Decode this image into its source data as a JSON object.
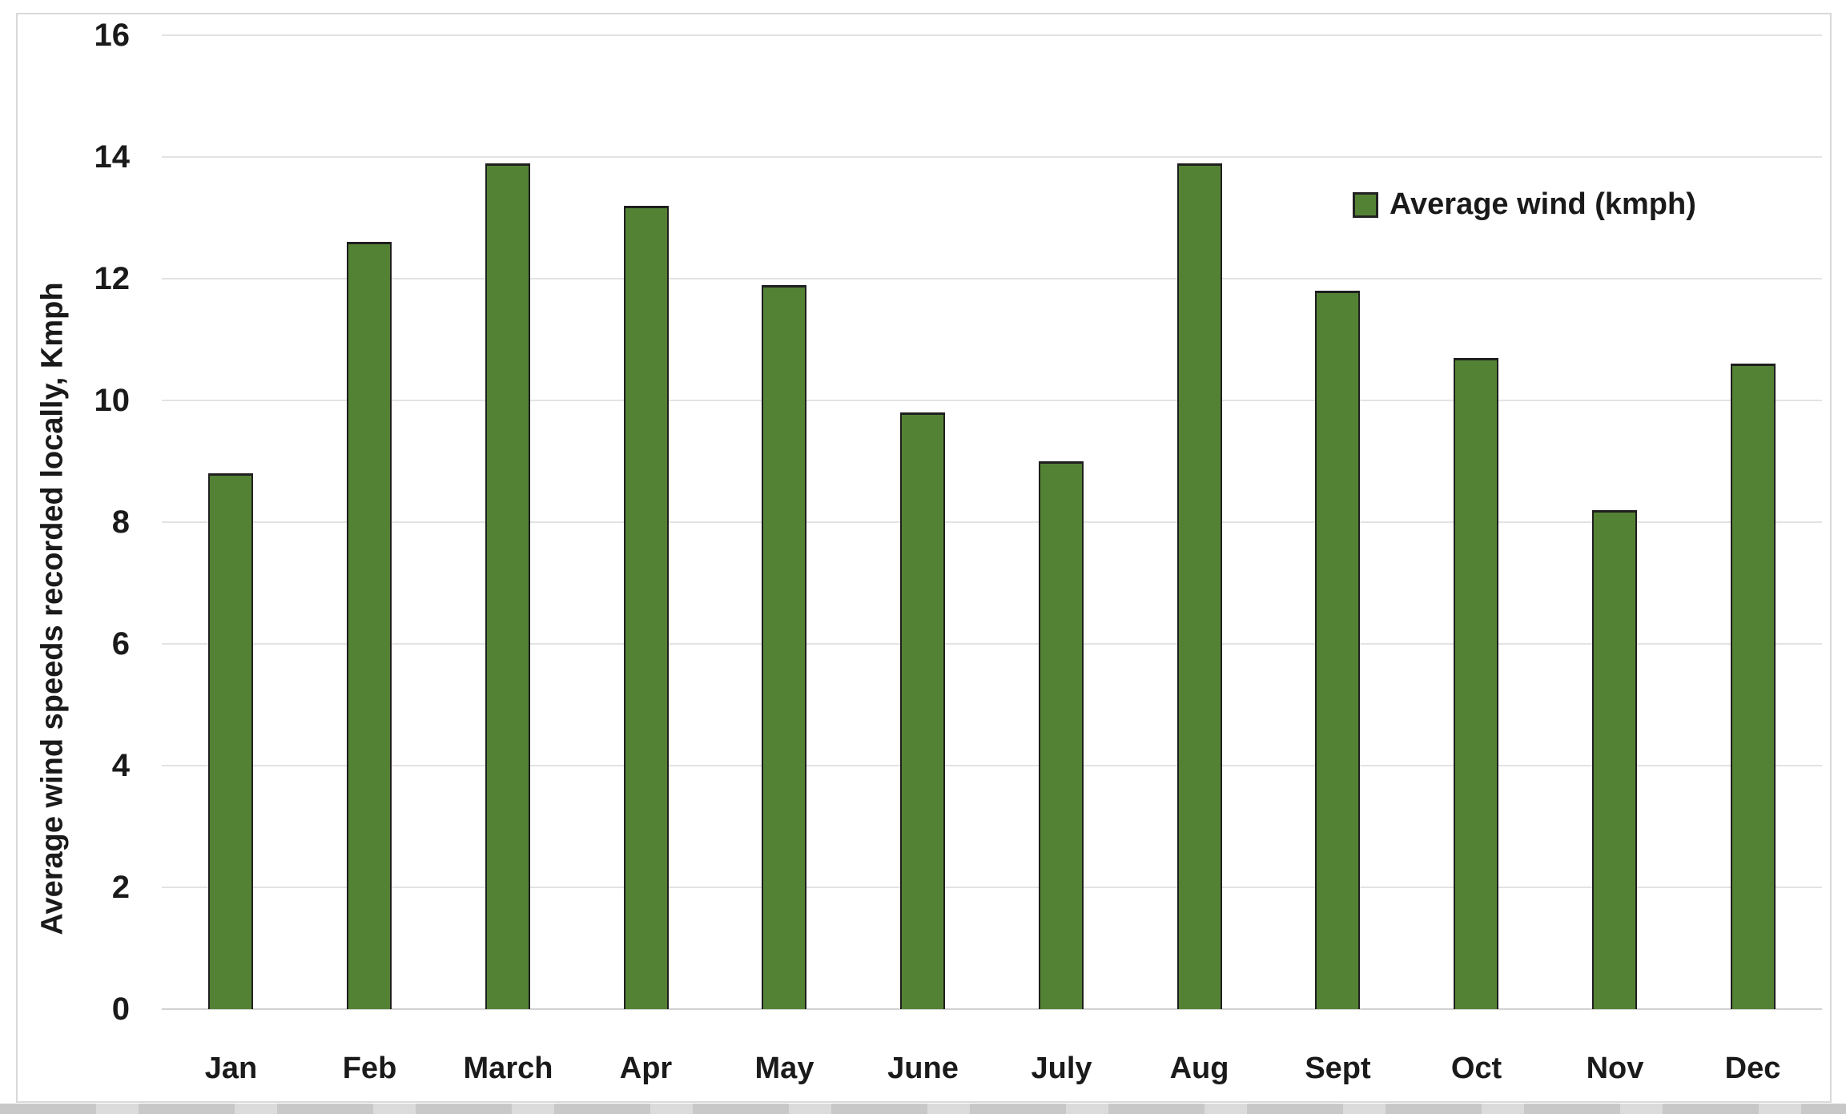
{
  "chart_data": {
    "type": "bar",
    "categories": [
      "Jan",
      "Feb",
      "March",
      "Apr",
      "May",
      "June",
      "July",
      "Aug",
      "Sept",
      "Oct",
      "Nov",
      "Dec"
    ],
    "values": [
      8.8,
      12.6,
      13.9,
      13.2,
      11.9,
      9.8,
      9.0,
      13.9,
      11.8,
      10.7,
      8.2,
      10.6
    ],
    "series": [
      {
        "name": "Average wind (kmph)",
        "values": [
          8.8,
          12.6,
          13.9,
          13.2,
          11.9,
          9.8,
          9.0,
          13.9,
          11.8,
          10.7,
          8.2,
          10.6
        ]
      }
    ],
    "title": "",
    "xlabel": "",
    "ylabel": "Average wind speeds recorded locally, Kmph",
    "ylim": [
      0,
      16
    ],
    "yticks": [
      0,
      2,
      4,
      6,
      8,
      10,
      12,
      14,
      16
    ],
    "grid": true,
    "legend": {
      "label": "Average wind (kmph)",
      "position": "top-right"
    },
    "colors": {
      "bar_fill": "#548235",
      "bar_border": "#1f1f1f",
      "gridline": "#e3e3e3",
      "axis_line": "#d2d2d2",
      "frame_border": "#d9d9d9",
      "text": "#1a1a1a"
    }
  }
}
